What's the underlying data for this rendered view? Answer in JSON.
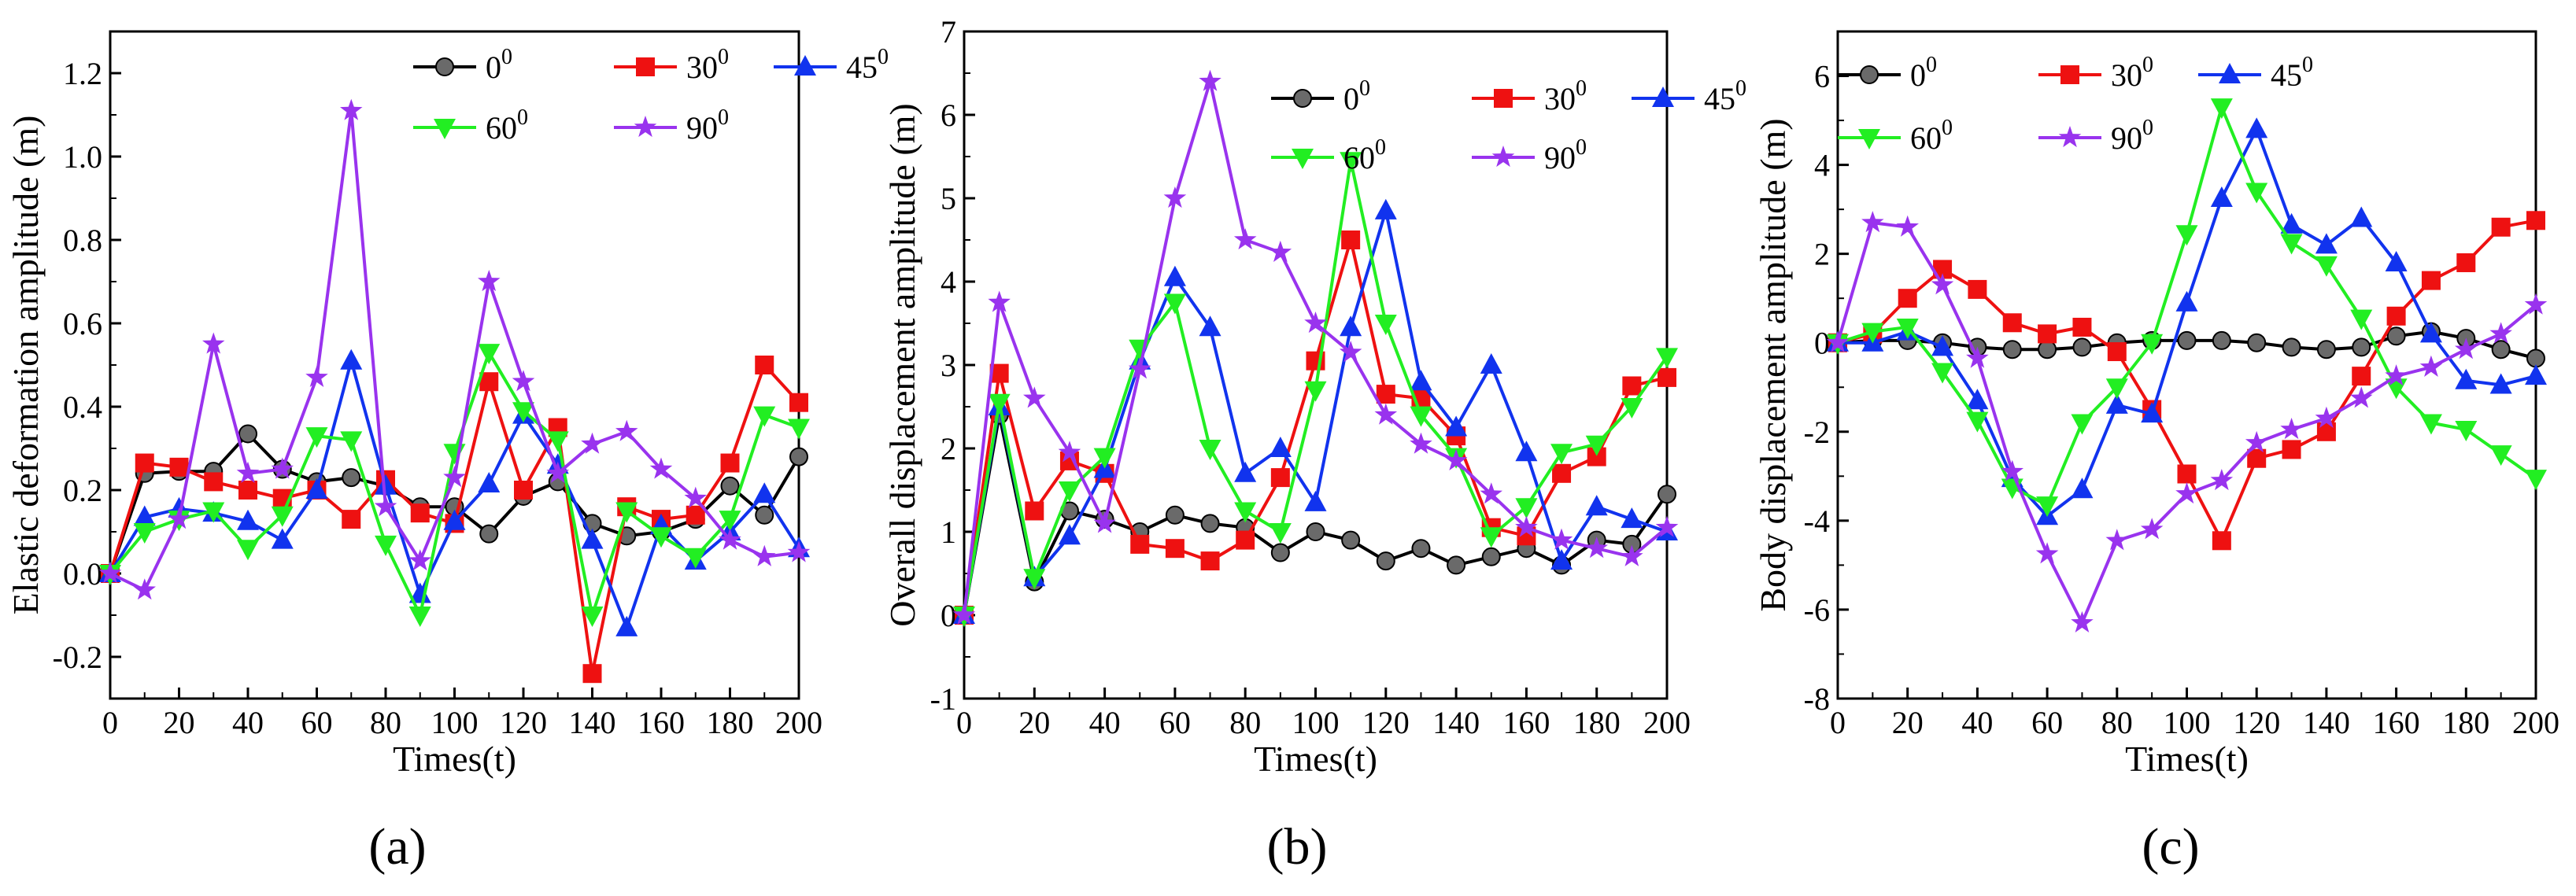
{
  "figure": {
    "colors": {
      "0": "#000000",
      "30": "#ee1111",
      "45": "#1133ee",
      "60": "#22ee22",
      "90": "#9933ee"
    },
    "legend_labels": [
      "0",
      "30",
      "45",
      "60",
      "90"
    ],
    "legend_superscript": "0"
  },
  "chart_data": [
    {
      "panel": "(a)",
      "type": "line",
      "title": "",
      "xlabel": "Times(t)",
      "ylabel": "Elastic deformation amplitude (m)",
      "xlim": [
        0,
        200
      ],
      "ylim": [
        -0.3,
        1.3
      ],
      "xticks": [
        0,
        20,
        40,
        60,
        80,
        100,
        120,
        140,
        160,
        180,
        200
      ],
      "yticks": [
        -0.2,
        0.0,
        0.2,
        0.4,
        0.6,
        0.8,
        1.0,
        1.2
      ],
      "ytick_labels": [
        "-0.2",
        "0.0",
        "0.2",
        "0.4",
        "0.6",
        "0.8",
        "1.0",
        "1.2"
      ],
      "x": [
        0,
        10,
        20,
        30,
        40,
        50,
        60,
        70,
        80,
        90,
        100,
        110,
        120,
        130,
        140,
        150,
        160,
        170,
        180,
        190,
        200
      ],
      "series": [
        {
          "name": "0",
          "values": [
            0,
            0.24,
            0.245,
            0.245,
            0.335,
            0.25,
            0.22,
            0.23,
            0.21,
            0.16,
            0.16,
            0.095,
            0.185,
            0.22,
            0.12,
            0.09,
            0.1,
            0.13,
            0.21,
            0.14,
            0.28
          ]
        },
        {
          "name": "30",
          "values": [
            0,
            0.265,
            0.255,
            0.22,
            0.2,
            0.18,
            0.2,
            0.13,
            0.225,
            0.145,
            0.12,
            0.46,
            0.2,
            0.35,
            -0.24,
            0.16,
            0.13,
            0.14,
            0.265,
            0.5,
            0.41
          ]
        },
        {
          "name": "45",
          "values": [
            0,
            0.135,
            0.155,
            0.145,
            0.125,
            0.08,
            0.2,
            0.51,
            0.21,
            -0.05,
            0.125,
            0.215,
            0.38,
            0.26,
            0.08,
            -0.13,
            0.115,
            0.03,
            0.1,
            0.19,
            0.06
          ]
        },
        {
          "name": "60",
          "values": [
            0,
            0.1,
            0.13,
            0.15,
            0.06,
            0.14,
            0.33,
            0.32,
            0.07,
            -0.1,
            0.29,
            0.53,
            0.39,
            0.32,
            -0.1,
            0.15,
            0.09,
            0.04,
            0.13,
            0.38,
            0.35
          ]
        },
        {
          "name": "90",
          "values": [
            0,
            -0.04,
            0.13,
            0.55,
            0.24,
            0.25,
            0.47,
            1.11,
            0.16,
            0.03,
            0.23,
            0.7,
            0.46,
            0.24,
            0.31,
            0.34,
            0.25,
            0.18,
            0.08,
            0.04,
            0.05
          ]
        }
      ]
    },
    {
      "panel": "(b)",
      "type": "line",
      "title": "",
      "xlabel": "Times(t)",
      "ylabel": "Overall displacement amplitude (m)",
      "xlim": [
        0,
        200
      ],
      "ylim": [
        -1,
        7
      ],
      "xticks": [
        0,
        20,
        40,
        60,
        80,
        100,
        120,
        140,
        160,
        180,
        200
      ],
      "yticks": [
        -1,
        0,
        1,
        2,
        3,
        4,
        5,
        6,
        7
      ],
      "ytick_labels": [
        "-1",
        "0",
        "1",
        "2",
        "3",
        "4",
        "5",
        "6",
        "7"
      ],
      "x": [
        0,
        10,
        20,
        30,
        40,
        50,
        60,
        70,
        80,
        90,
        100,
        110,
        120,
        130,
        140,
        150,
        160,
        170,
        180,
        190,
        200
      ],
      "series": [
        {
          "name": "0",
          "values": [
            0,
            2.4,
            0.4,
            1.25,
            1.15,
            1.0,
            1.2,
            1.1,
            1.05,
            0.75,
            1.0,
            0.9,
            0.65,
            0.8,
            0.6,
            0.7,
            0.8,
            0.6,
            0.9,
            0.85,
            1.45
          ]
        },
        {
          "name": "30",
          "values": [
            0,
            2.9,
            1.25,
            1.85,
            1.7,
            0.85,
            0.8,
            0.65,
            0.9,
            1.65,
            3.05,
            4.5,
            2.65,
            2.6,
            2.15,
            1.05,
            0.95,
            1.7,
            1.9,
            2.75,
            2.85
          ]
        },
        {
          "name": "45",
          "values": [
            0,
            2.5,
            0.45,
            0.95,
            1.75,
            3.05,
            4.05,
            3.45,
            1.7,
            2.0,
            1.35,
            3.45,
            4.85,
            2.8,
            2.25,
            3.0,
            1.95,
            0.65,
            1.3,
            1.15,
            1.0
          ]
        },
        {
          "name": "60",
          "values": [
            0,
            2.55,
            0.45,
            1.5,
            1.9,
            3.2,
            3.75,
            2.0,
            1.25,
            1.0,
            2.7,
            5.45,
            3.5,
            2.4,
            1.9,
            0.95,
            1.3,
            1.95,
            2.05,
            2.5,
            3.1
          ]
        },
        {
          "name": "90",
          "values": [
            0,
            3.75,
            2.6,
            1.95,
            1.1,
            2.95,
            5.0,
            6.4,
            4.5,
            4.35,
            3.5,
            3.15,
            2.4,
            2.05,
            1.85,
            1.45,
            1.05,
            0.9,
            0.8,
            0.7,
            1.05
          ]
        }
      ]
    },
    {
      "panel": "(c)",
      "type": "line",
      "title": "",
      "xlabel": "Times(t)",
      "ylabel": "Body displacement amplitude (m)",
      "xlim": [
        0,
        200
      ],
      "ylim": [
        -8,
        7
      ],
      "xticks": [
        0,
        20,
        40,
        60,
        80,
        100,
        120,
        140,
        160,
        180,
        200
      ],
      "yticks": [
        -8,
        -6,
        -4,
        -2,
        0,
        2,
        4,
        6
      ],
      "ytick_labels": [
        "-8",
        "-6",
        "-4",
        "-2",
        "0",
        "2",
        "4",
        "6"
      ],
      "x": [
        0,
        10,
        20,
        30,
        40,
        50,
        60,
        70,
        80,
        90,
        100,
        110,
        120,
        130,
        140,
        150,
        160,
        170,
        180,
        190,
        200
      ],
      "series": [
        {
          "name": "0",
          "values": [
            0,
            0.05,
            0.05,
            0.0,
            -0.1,
            -0.15,
            -0.15,
            -0.1,
            0.0,
            0.05,
            0.05,
            0.05,
            0.0,
            -0.1,
            -0.15,
            -0.1,
            0.15,
            0.25,
            0.1,
            -0.15,
            -0.35
          ]
        },
        {
          "name": "30",
          "values": [
            0,
            0.2,
            1.0,
            1.65,
            1.2,
            0.45,
            0.2,
            0.35,
            -0.2,
            -1.5,
            -2.95,
            -4.45,
            -2.6,
            -2.4,
            -2.0,
            -0.75,
            0.6,
            1.4,
            1.8,
            2.6,
            2.75
          ]
        },
        {
          "name": "45",
          "values": [
            0,
            0.0,
            0.25,
            -0.1,
            -1.3,
            -3.05,
            -3.9,
            -3.3,
            -1.4,
            -1.6,
            0.9,
            3.25,
            4.8,
            2.65,
            2.2,
            2.8,
            1.8,
            0.2,
            -0.85,
            -0.95,
            -0.75
          ]
        },
        {
          "name": "60",
          "values": [
            0,
            0.25,
            0.35,
            -0.65,
            -1.75,
            -3.25,
            -3.65,
            -1.8,
            -1.0,
            0.0,
            2.45,
            5.3,
            3.4,
            2.25,
            1.75,
            0.55,
            -1.0,
            -1.8,
            -1.95,
            -2.5,
            -3.05
          ]
        },
        {
          "name": "90",
          "values": [
            0,
            2.7,
            2.6,
            1.3,
            -0.35,
            -2.9,
            -4.75,
            -6.3,
            -4.45,
            -4.2,
            -3.4,
            -3.1,
            -2.25,
            -1.95,
            -1.7,
            -1.25,
            -0.75,
            -0.55,
            -0.15,
            0.2,
            0.85
          ]
        }
      ]
    }
  ]
}
